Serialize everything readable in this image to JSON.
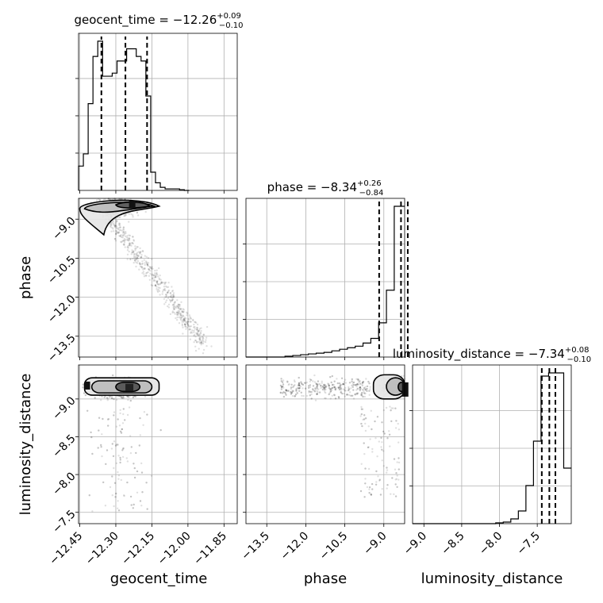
{
  "chart_data": {
    "type": "scatter",
    "variant": "corner-plot",
    "parameters": [
      "geocent_time",
      "phase",
      "luminosity_distance"
    ],
    "axis_labels": {
      "geocent_time": "geocent_time",
      "phase": "phase",
      "luminosity_distance": "luminosity_distance"
    },
    "ranges": {
      "geocent_time": [
        -12.455,
        -11.795
      ],
      "phase": [
        -14.3,
        -8.2
      ],
      "luminosity_distance": [
        -9.15,
        -7.05
      ]
    },
    "ticks": {
      "geocent_time": [
        -12.45,
        -12.3,
        -12.15,
        -12.0,
        -11.85
      ],
      "phase_y": [
        -9.0,
        -10.5,
        -12.0,
        -13.5
      ],
      "phase_x": [
        -13.5,
        -12.0,
        -10.5,
        -9.0
      ],
      "luminosity_distance": [
        -9.0,
        -8.5,
        -8.0,
        -7.5
      ]
    },
    "tick_labels": {
      "geocent_time": [
        "−12.45",
        "−12.30",
        "−12.15",
        "−12.00",
        "−11.85"
      ],
      "phase_y": [
        "−9.0",
        "−10.5",
        "−12.0",
        "−13.5"
      ],
      "phase_x": [
        "−13.5",
        "−12.0",
        "−10.5",
        "−9.0"
      ],
      "luminosity_distance_y": [
        "−7.5",
        "−8.0",
        "−8.5",
        "−9.0"
      ],
      "luminosity_distance_x": [
        "−9.0",
        "−8.5",
        "−8.0",
        "−7.5"
      ]
    },
    "summaries": {
      "geocent_time": {
        "prefix": "geocent_time = −12.26",
        "plus": "+0.09",
        "minus": "−0.10",
        "quantiles": [
          -12.36,
          -12.26,
          -12.17
        ]
      },
      "phase": {
        "prefix": "phase = −8.34",
        "plus": "+0.26",
        "minus": "−0.84",
        "quantiles": [
          -9.18,
          -8.34,
          -8.08
        ]
      },
      "luminosity_distance": {
        "prefix": "luminosity_distance = −7.34",
        "plus": "+0.08",
        "minus": "−0.10",
        "quantiles": [
          -7.44,
          -7.34,
          -7.26
        ]
      }
    },
    "histograms": {
      "geocent_time": {
        "edges": [
          -12.455,
          -12.435,
          -12.415,
          -12.395,
          -12.375,
          -12.355,
          -12.335,
          -12.315,
          -12.295,
          -12.275,
          -12.255,
          -12.235,
          -12.215,
          -12.195,
          -12.175,
          -12.155,
          -12.135,
          -12.115,
          -12.095,
          -12.075,
          -12.055,
          -12.035,
          -12.015,
          -11.995
        ],
        "counts": [
          0.16,
          0.24,
          0.57,
          0.88,
          0.98,
          0.75,
          0.75,
          0.77,
          0.85,
          0.85,
          0.93,
          0.93,
          0.88,
          0.85,
          0.62,
          0.12,
          0.05,
          0.02,
          0.01,
          0.01,
          0.01,
          0.005,
          0.0
        ]
      },
      "phase": {
        "edges": [
          -14.3,
          -14.0,
          -13.7,
          -13.4,
          -13.1,
          -12.8,
          -12.5,
          -12.2,
          -11.9,
          -11.6,
          -11.3,
          -11.0,
          -10.7,
          -10.4,
          -10.1,
          -9.8,
          -9.5,
          -9.2,
          -8.9,
          -8.6,
          -8.3,
          -8.2
        ],
        "counts": [
          0.0,
          0.0,
          0.0,
          0.0,
          0.0,
          0.005,
          0.01,
          0.015,
          0.02,
          0.025,
          0.03,
          0.04,
          0.05,
          0.06,
          0.07,
          0.09,
          0.12,
          0.22,
          0.43,
          0.97,
          0.97
        ]
      },
      "luminosity_distance": {
        "edges": [
          -9.15,
          -9.05,
          -8.95,
          -8.85,
          -8.75,
          -8.65,
          -8.55,
          -8.45,
          -8.35,
          -8.25,
          -8.15,
          -8.05,
          -7.95,
          -7.85,
          -7.75,
          -7.65,
          -7.55,
          -7.45,
          -7.35,
          -7.25,
          -7.15,
          -7.05
        ],
        "counts": [
          0.0,
          0.0,
          0.0,
          0.0,
          0.0,
          0.0,
          0.0,
          0.0,
          0.0,
          0.0,
          0.0,
          0.005,
          0.01,
          0.03,
          0.08,
          0.24,
          0.52,
          0.93,
          0.95,
          0.95,
          0.35
        ]
      }
    },
    "scatter_note_colors": {
      "points": "#000000",
      "dense_fill": "#2b2b2b",
      "mid_fill": "#8c8c8c",
      "light_fill": "#d9d9d9"
    },
    "grid": true
  }
}
